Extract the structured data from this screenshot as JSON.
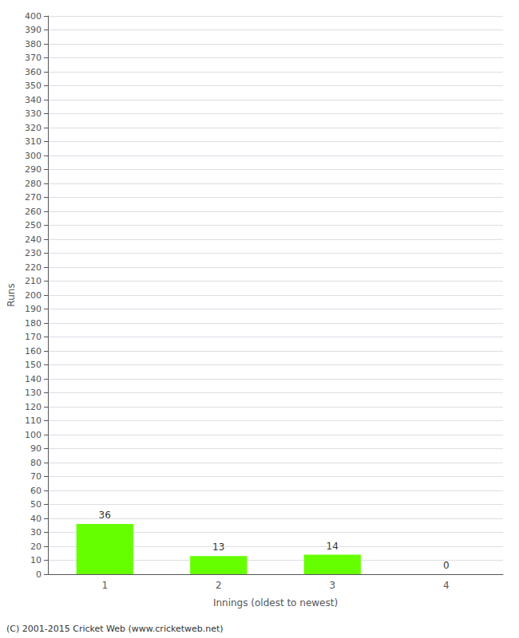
{
  "chart_data": {
    "type": "bar",
    "categories": [
      "1",
      "2",
      "3",
      "4"
    ],
    "values": [
      36,
      13,
      14,
      0
    ],
    "color": "#66ff00",
    "xlabel": "Innings (oldest to newest)",
    "ylabel": "Runs",
    "ylim": [
      0,
      400
    ],
    "yticks": [
      0,
      10,
      20,
      30,
      40,
      50,
      60,
      70,
      80,
      90,
      100,
      110,
      120,
      130,
      140,
      150,
      160,
      170,
      180,
      190,
      200,
      210,
      220,
      230,
      240,
      250,
      260,
      270,
      280,
      290,
      300,
      310,
      320,
      330,
      340,
      350,
      360,
      370,
      380,
      390,
      400
    ],
    "grid": true,
    "data_labels": true,
    "annotations": [
      "(C) 2001-2015 Cricket Web (www.cricketweb.net)"
    ]
  }
}
